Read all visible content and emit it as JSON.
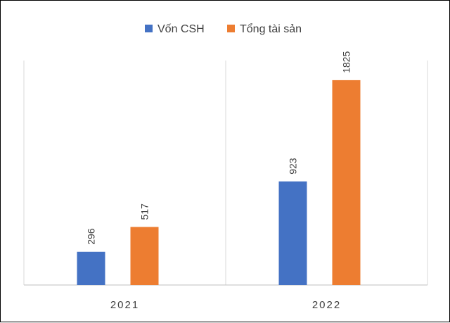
{
  "chart_data": {
    "type": "bar",
    "title": "",
    "xlabel": "",
    "ylabel": "",
    "categories": [
      "2021",
      "2022"
    ],
    "series": [
      {
        "name": "Vốn CSH",
        "values": [
          296,
          923
        ],
        "color": "#4472C4"
      },
      {
        "name": "Tổng tài sản",
        "values": [
          517,
          1825
        ],
        "color": "#ED7D31"
      }
    ],
    "ylim": [
      0,
      2000
    ],
    "grid": false,
    "legend_position": "top-center"
  }
}
